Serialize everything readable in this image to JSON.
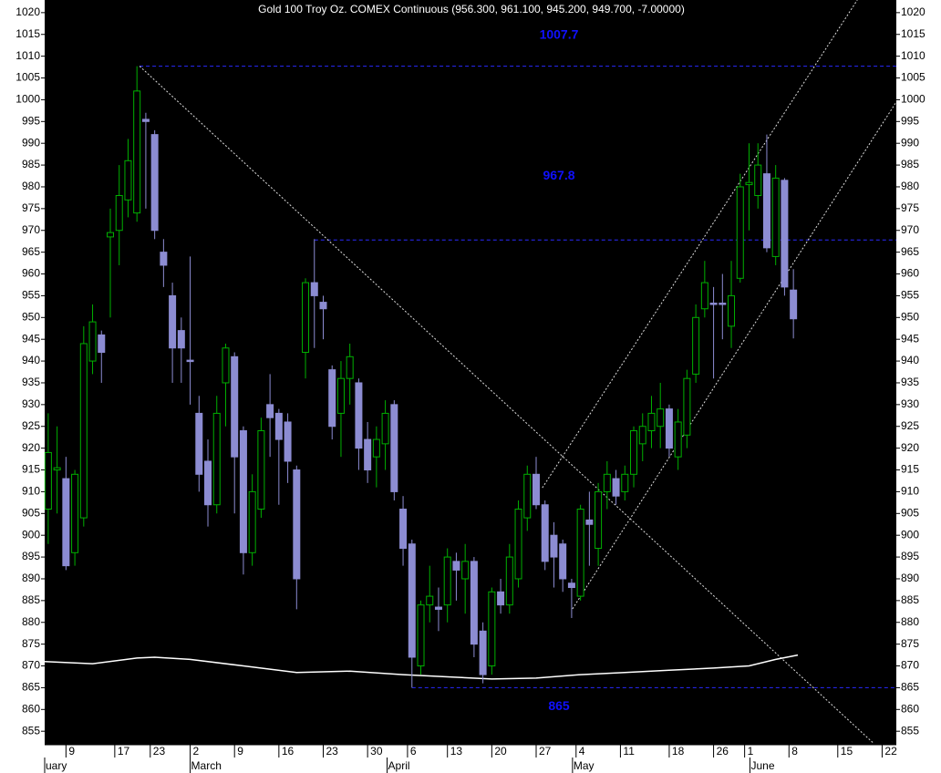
{
  "chart_data": {
    "type": "candlestick",
    "title": "Gold 100 Troy Oz. COMEX Continuous (956.300, 961.100, 945.200, 949.700, -7.00000)",
    "up_color": "#00b000",
    "down_color": "#8c8cd2",
    "x": [
      0,
      1,
      2,
      3,
      4,
      5,
      6,
      7,
      8,
      9,
      10,
      11,
      12,
      13,
      14,
      15,
      16,
      17,
      18,
      19,
      20,
      21,
      22,
      23,
      24,
      25,
      26,
      27,
      28,
      29,
      30,
      31,
      32,
      33,
      34,
      35,
      36,
      37,
      38,
      39,
      40,
      41,
      42,
      43,
      44,
      45,
      46,
      47,
      48,
      49,
      50,
      51,
      52,
      53,
      54,
      55,
      56,
      57,
      58,
      59,
      60,
      61,
      62,
      63,
      64,
      65,
      66,
      67,
      68,
      69,
      70,
      71,
      72,
      73,
      74,
      75,
      76,
      77,
      78,
      79,
      80,
      81,
      82,
      83,
      84
    ],
    "open": [
      906,
      915,
      913,
      896,
      904,
      940,
      946,
      968.5,
      970,
      977,
      974,
      995.5,
      992,
      965,
      955,
      947,
      940.2,
      928,
      917,
      907,
      935,
      941,
      924,
      896,
      906,
      930,
      928,
      926,
      915,
      942,
      958,
      953.5,
      938,
      928,
      936,
      935,
      922,
      918,
      921,
      930,
      906,
      898,
      870,
      884,
      883.5,
      884,
      894,
      890,
      894,
      878,
      870,
      887,
      884,
      890,
      904,
      914,
      907,
      900,
      898,
      889,
      886,
      903.5,
      897,
      910,
      913,
      910,
      914,
      921,
      924,
      925,
      929,
      918,
      923,
      937,
      952,
      953.3,
      953.3,
      948,
      959,
      980.5,
      978,
      983,
      964,
      981.5,
      956.3
    ],
    "high": [
      928,
      925,
      918,
      915,
      948,
      953,
      947,
      975,
      985,
      991,
      1007.7,
      997,
      993,
      968,
      958,
      950,
      964,
      932,
      922,
      932,
      944,
      942,
      925,
      914,
      927,
      937,
      929,
      928,
      916,
      959,
      968,
      955,
      939,
      940,
      944,
      936,
      926,
      925,
      931,
      931,
      909,
      899,
      885,
      893,
      888,
      897,
      896,
      898,
      895,
      880,
      888,
      890,
      898,
      908,
      916,
      918,
      908,
      903,
      899,
      890,
      907,
      910,
      912,
      917,
      915,
      916,
      925,
      928,
      932,
      935,
      930,
      929,
      938,
      953,
      963,
      957,
      960,
      963,
      983,
      990,
      990,
      992,
      985,
      982,
      961.1
    ],
    "low": [
      898,
      905,
      892,
      893,
      902,
      937,
      935,
      950,
      962,
      973,
      972,
      975,
      968,
      957,
      935,
      935,
      930,
      910,
      902,
      905,
      925,
      905,
      891,
      893,
      904,
      918,
      907,
      912,
      883,
      936,
      943,
      945,
      922,
      918,
      930,
      915,
      912,
      911,
      915,
      908,
      893,
      865,
      868,
      880,
      878,
      880,
      885,
      882,
      872,
      866,
      868,
      882,
      882,
      888,
      901,
      906,
      892,
      888,
      887,
      881,
      885,
      893,
      893,
      906,
      907,
      908,
      911,
      917,
      920,
      920,
      918,
      915,
      920,
      935,
      950,
      936,
      945,
      943,
      958,
      970,
      975,
      965,
      962,
      955,
      945.2
    ],
    "close": [
      919,
      915.5,
      893,
      914,
      944,
      949,
      942,
      969.5,
      978,
      986,
      1002,
      995,
      970,
      962,
      943,
      943,
      940,
      914,
      907,
      928,
      943,
      918,
      896,
      910,
      924,
      927,
      922,
      917,
      890,
      958,
      955,
      952,
      925,
      936,
      941,
      920,
      915,
      922,
      928,
      910,
      897,
      872,
      884,
      886,
      883,
      895,
      892,
      894,
      875,
      868,
      887,
      884,
      895,
      906,
      914,
      907,
      894,
      895,
      890,
      888,
      906,
      902.5,
      910,
      914,
      909,
      914,
      924,
      925,
      928,
      929,
      920,
      926,
      936,
      950,
      958,
      953,
      953,
      955,
      980,
      981,
      985,
      966,
      982,
      957,
      949.7
    ],
    "moving_average": {
      "x": [
        -0.4,
        5,
        10,
        12,
        16,
        22,
        28,
        34,
        40,
        45,
        50,
        55,
        60,
        65,
        70,
        75,
        79,
        82,
        84.5
      ],
      "values": [
        871,
        870.5,
        871.8,
        872,
        871.5,
        870,
        868.5,
        868.8,
        868,
        867.5,
        867,
        867.2,
        868,
        868.5,
        869,
        869.5,
        870,
        871.5,
        872.5
      ]
    },
    "levels": [
      {
        "value": 1007.7,
        "label": "1007.7",
        "from": 10.3
      },
      {
        "value": 967.8,
        "label": "967.8",
        "from": 30
      },
      {
        "value": 865,
        "label": "865",
        "from": 41
      }
    ],
    "trend_lines": [
      {
        "x": [
          10.3,
          93
        ],
        "y": [
          1007.7,
          852.3
        ]
      },
      {
        "x": [
          55.7,
          91.2
        ],
        "y": [
          910.9,
          1022.9
        ]
      },
      {
        "x": [
          59.1,
          95.6
        ],
        "y": [
          883.1,
          999.5
        ]
      }
    ],
    "xlim": [
      -0.4,
      95.6
    ],
    "xticks": [
      {
        "value": 2,
        "label": "9"
      },
      {
        "value": 7.5,
        "label": "17"
      },
      {
        "value": 11.5,
        "label": "23"
      },
      {
        "value": 16,
        "label": "2"
      },
      {
        "value": 21,
        "label": "9"
      },
      {
        "value": 26,
        "label": "16"
      },
      {
        "value": 31,
        "label": "23"
      },
      {
        "value": 36,
        "label": "30"
      },
      {
        "value": 40.5,
        "label": "6"
      },
      {
        "value": 45,
        "label": "13"
      },
      {
        "value": 50,
        "label": "20"
      },
      {
        "value": 55,
        "label": "27"
      },
      {
        "value": 59.5,
        "label": "4"
      },
      {
        "value": 64.5,
        "label": "11"
      },
      {
        "value": 70,
        "label": "18"
      },
      {
        "value": 75,
        "label": "26"
      },
      {
        "value": 78.5,
        "label": "1"
      },
      {
        "value": 83.5,
        "label": "8"
      },
      {
        "value": 89,
        "label": "15"
      },
      {
        "value": 94,
        "label": "22"
      }
    ],
    "months": [
      {
        "value": -0.4,
        "label": "uary"
      },
      {
        "value": 16,
        "label": "March"
      },
      {
        "value": 38.2,
        "label": "April"
      },
      {
        "value": 59.1,
        "label": "May"
      },
      {
        "value": 79.1,
        "label": "June"
      }
    ],
    "ylim": [
      851.9,
      1022.9
    ],
    "yticks": [
      855,
      860,
      865,
      870,
      875,
      880,
      885,
      890,
      895,
      900,
      905,
      910,
      915,
      920,
      925,
      930,
      935,
      940,
      945,
      950,
      955,
      960,
      965,
      970,
      975,
      980,
      985,
      990,
      995,
      1000,
      1005,
      1010,
      1015,
      1020
    ]
  }
}
